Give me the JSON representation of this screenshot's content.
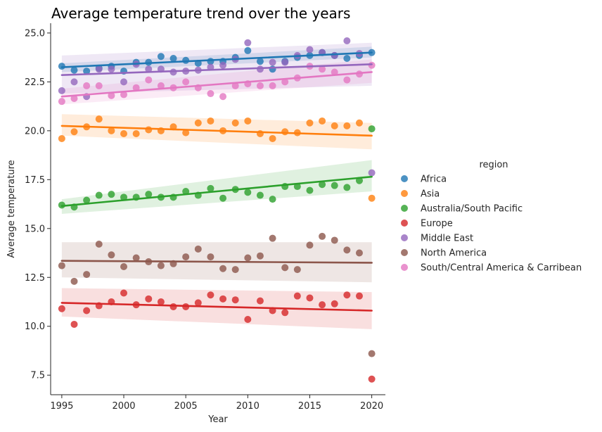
{
  "chart_data": {
    "type": "scatter",
    "title": "Average temperature trend over the years",
    "xlabel": "Year",
    "ylabel": "Average temperature",
    "xlim": [
      1994.1,
      2021.1
    ],
    "ylim": [
      6.5,
      25.5
    ],
    "xticks": [
      1995,
      2000,
      2005,
      2010,
      2015,
      2020
    ],
    "yticks": [
      7.5,
      10.0,
      12.5,
      15.0,
      17.5,
      20.0,
      22.5,
      25.0
    ],
    "legend": {
      "title": "region",
      "position": "right"
    },
    "fit": "linear regression line with confidence band",
    "series": [
      {
        "name": "Africa",
        "color": "#1f77b4",
        "x": [
          1995,
          1996,
          1997,
          1998,
          1999,
          2000,
          2001,
          2002,
          2003,
          2004,
          2005,
          2006,
          2007,
          2008,
          2009,
          2010,
          2011,
          2012,
          2013,
          2014,
          2015,
          2016,
          2017,
          2018,
          2019,
          2020
        ],
        "y": [
          23.3,
          23.1,
          23.05,
          23.2,
          23.3,
          23.05,
          23.5,
          23.5,
          23.8,
          23.7,
          23.6,
          23.45,
          23.55,
          23.55,
          23.75,
          24.1,
          23.55,
          23.15,
          23.55,
          23.75,
          23.85,
          24.0,
          23.85,
          23.7,
          23.85,
          24.0
        ],
        "fit": [
          23.25,
          24.0
        ],
        "band": [
          [
            23.0,
            23.45
          ],
          [
            23.75,
            24.3
          ]
        ]
      },
      {
        "name": "Asia",
        "color": "#ff7f0e",
        "x": [
          1995,
          1996,
          1997,
          1998,
          1999,
          2000,
          2001,
          2002,
          2003,
          2004,
          2005,
          2006,
          2007,
          2008,
          2009,
          2010,
          2011,
          2012,
          2013,
          2014,
          2015,
          2016,
          2017,
          2018,
          2019,
          2020
        ],
        "y": [
          19.6,
          19.95,
          20.2,
          20.6,
          20.0,
          19.85,
          19.85,
          20.05,
          20.0,
          20.2,
          19.9,
          20.4,
          20.5,
          20.0,
          20.4,
          20.5,
          19.85,
          19.6,
          19.95,
          19.9,
          20.4,
          20.5,
          20.25,
          20.25,
          20.4,
          16.55
        ],
        "fit": [
          20.25,
          19.75
        ],
        "band": [
          [
            19.75,
            20.85
          ],
          [
            19.05,
            20.4
          ]
        ]
      },
      {
        "name": "Australia/South Pacific",
        "color": "#2ca02c",
        "x": [
          1995,
          1996,
          1997,
          1998,
          1999,
          2000,
          2001,
          2002,
          2003,
          2004,
          2005,
          2006,
          2007,
          2008,
          2009,
          2010,
          2011,
          2012,
          2013,
          2014,
          2015,
          2016,
          2017,
          2018,
          2019,
          2020
        ],
        "y": [
          16.2,
          16.1,
          16.45,
          16.7,
          16.75,
          16.6,
          16.6,
          16.75,
          16.6,
          16.6,
          16.9,
          16.7,
          17.05,
          16.55,
          17.0,
          16.85,
          16.7,
          16.5,
          17.15,
          17.15,
          16.95,
          17.25,
          17.2,
          17.1,
          17.45,
          20.1
        ],
        "fit": [
          16.15,
          17.65
        ],
        "band": [
          [
            15.75,
            16.5
          ],
          [
            16.9,
            18.5
          ]
        ]
      },
      {
        "name": "Europe",
        "color": "#d62728",
        "x": [
          1995,
          1996,
          1997,
          1998,
          1999,
          2000,
          2001,
          2002,
          2003,
          2004,
          2005,
          2006,
          2007,
          2008,
          2009,
          2010,
          2011,
          2012,
          2013,
          2014,
          2015,
          2016,
          2017,
          2018,
          2019,
          2020
        ],
        "y": [
          10.9,
          10.1,
          10.8,
          11.05,
          11.25,
          11.7,
          11.1,
          11.4,
          11.25,
          11.0,
          11.0,
          11.2,
          11.6,
          11.4,
          11.35,
          10.35,
          11.3,
          10.8,
          10.7,
          11.55,
          11.45,
          11.1,
          11.15,
          11.6,
          11.55,
          7.3
        ],
        "fit": [
          11.2,
          10.8
        ],
        "band": [
          [
            10.5,
            11.95
          ],
          [
            9.85,
            11.75
          ]
        ]
      },
      {
        "name": "Middle East",
        "color": "#9467bd",
        "x": [
          1995,
          1996,
          1997,
          1998,
          1999,
          2000,
          2001,
          2002,
          2003,
          2004,
          2005,
          2006,
          2007,
          2008,
          2009,
          2010,
          2011,
          2012,
          2013,
          2014,
          2015,
          2016,
          2017,
          2018,
          2019,
          2020
        ],
        "y": [
          22.05,
          22.5,
          21.75,
          23.15,
          23.15,
          22.5,
          23.4,
          23.15,
          23.15,
          23.0,
          23.05,
          23.1,
          23.25,
          23.35,
          23.65,
          24.5,
          23.15,
          23.5,
          23.5,
          23.85,
          24.15,
          24.0,
          23.85,
          24.6,
          23.95,
          17.85
        ],
        "fit": [
          22.85,
          23.4
        ],
        "band": [
          [
            21.9,
            23.85
          ],
          [
            22.3,
            24.5
          ]
        ]
      },
      {
        "name": "North America",
        "color": "#8c564b",
        "x": [
          1995,
          1996,
          1997,
          1998,
          1999,
          2000,
          2001,
          2002,
          2003,
          2004,
          2005,
          2006,
          2007,
          2008,
          2009,
          2010,
          2011,
          2012,
          2013,
          2014,
          2015,
          2016,
          2017,
          2018,
          2019,
          2020
        ],
        "y": [
          13.1,
          12.3,
          12.65,
          14.2,
          13.65,
          13.05,
          13.5,
          13.3,
          13.1,
          13.2,
          13.55,
          13.95,
          13.55,
          12.95,
          12.9,
          13.5,
          13.6,
          14.5,
          13.0,
          12.9,
          14.15,
          14.6,
          14.4,
          13.9,
          13.75,
          8.6
        ],
        "fit": [
          13.35,
          13.25
        ],
        "band": [
          [
            12.5,
            14.3
          ],
          [
            12.25,
            14.3
          ]
        ]
      },
      {
        "name": "South/Central America & Carribean",
        "color": "#e377c2",
        "x": [
          1995,
          1996,
          1997,
          1998,
          1999,
          2000,
          2001,
          2002,
          2003,
          2004,
          2005,
          2006,
          2007,
          2008,
          2009,
          2010,
          2011,
          2012,
          2013,
          2014,
          2015,
          2016,
          2017,
          2018,
          2019,
          2020
        ],
        "y": [
          21.5,
          21.65,
          22.3,
          22.3,
          21.8,
          21.85,
          22.2,
          22.6,
          22.3,
          22.2,
          22.5,
          22.2,
          21.9,
          21.75,
          22.3,
          22.4,
          22.3,
          22.3,
          22.5,
          22.7,
          23.3,
          23.15,
          23.0,
          22.6,
          22.9,
          23.35
        ],
        "fit": [
          21.75,
          23.0
        ],
        "band": [
          [
            21.35,
            22.15
          ],
          [
            22.45,
            23.65
          ]
        ]
      }
    ]
  }
}
